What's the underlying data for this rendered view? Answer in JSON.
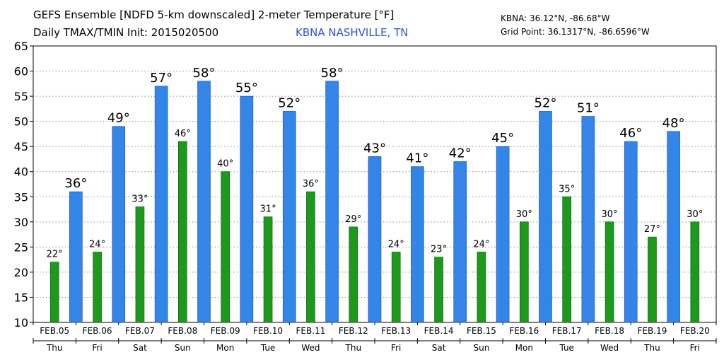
{
  "header": {
    "title": "GEFS Ensemble [NDFD 5-km downscaled] 2-meter Temperature [°F]",
    "subtitle": "Daily TMAX/TMIN Init: 2015020500",
    "station": "KBNA NASHVILLE, TN",
    "station_coords": "KBNA: 36.12°N, -86.68°W",
    "grid_point": "Grid Point: 36.1317°N, -86.6596°W"
  },
  "colors": {
    "tmax": "#3385ea",
    "tmin": "#1d9a1d",
    "station_text": "#2e55d8"
  },
  "chart_data": {
    "type": "bar",
    "ylim": [
      10,
      65
    ],
    "yticks": [
      10,
      15,
      20,
      25,
      30,
      35,
      40,
      45,
      50,
      55,
      60,
      65
    ],
    "grid": true,
    "categories": [
      "FEB.05",
      "FEB.06",
      "FEB.07",
      "FEB.08",
      "FEB.09",
      "FEB.10",
      "FEB.11",
      "FEB.12",
      "FEB.13",
      "FEB.14",
      "FEB.15",
      "FEB.16",
      "FEB.17",
      "FEB.18",
      "FEB.19",
      "FEB.20"
    ],
    "weekdays": [
      "Thu",
      "Fri",
      "Sat",
      "Sun",
      "Mon",
      "Tue",
      "Wed",
      "Thu",
      "Fri",
      "Sat",
      "Sun",
      "Mon",
      "Tue",
      "Wed",
      "Thu",
      "Fri"
    ],
    "tmin": {
      "values": [
        22,
        24,
        33,
        46,
        40,
        31,
        36,
        29,
        24,
        23,
        24,
        30,
        35,
        30,
        27,
        30
      ],
      "labels": [
        "22°",
        "24°",
        "33°",
        "46°",
        "40°",
        "31°",
        "36°",
        "29°",
        "24°",
        "23°",
        "24°",
        "30°",
        "35°",
        "30°",
        "27°",
        "30°"
      ]
    },
    "tmax": {
      "values": [
        36,
        49,
        57,
        58,
        55,
        52,
        58,
        43,
        41,
        42,
        45,
        52,
        51,
        46,
        48
      ],
      "labels": [
        "36°",
        "49°",
        "57°",
        "58°",
        "55°",
        "52°",
        "58°",
        "43°",
        "41°",
        "42°",
        "45°",
        "52°",
        "51°",
        "46°",
        "48°"
      ]
    }
  }
}
